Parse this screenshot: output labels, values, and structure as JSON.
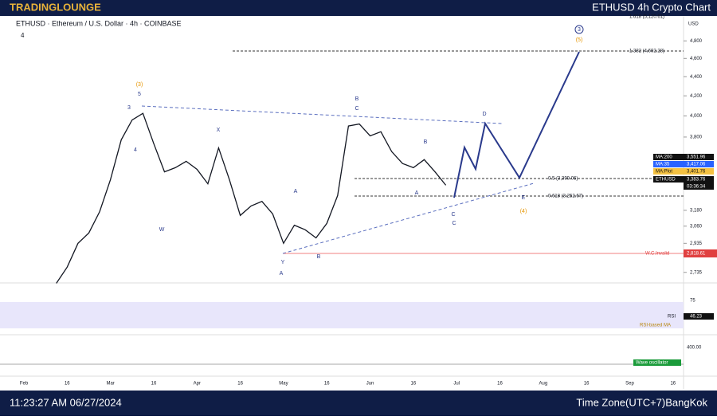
{
  "header": {
    "brand": "TRADINGLOUNGE",
    "title": "ETHUSD 4h Crypto Chart"
  },
  "symbol_info": "ETHUSD · Ethereum / U.S. Dollar · 4h · COINBASE",
  "indicator_count": "4",
  "currency": "USD",
  "chart_data": {
    "type": "line",
    "color": "#131722",
    "log": true,
    "ylim": [
      2640,
      5120
    ],
    "yticks": [
      {
        "value": 4800,
        "label": "4,800"
      },
      {
        "value": 4600,
        "label": "4,600"
      },
      {
        "value": 4400,
        "label": "4,400"
      },
      {
        "value": 4200,
        "label": "4,200"
      },
      {
        "value": 4000,
        "label": "4,000"
      },
      {
        "value": 3800,
        "label": "3,800"
      },
      {
        "value": 3180,
        "label": "3,180"
      },
      {
        "value": 3060,
        "label": "3,060"
      },
      {
        "value": 2935,
        "label": "2,935"
      },
      {
        "value": 2735,
        "label": "2,735"
      }
    ],
    "categories": [
      "Feb",
      null,
      null,
      null,
      "16",
      null,
      null,
      null,
      "Mar",
      null,
      null,
      null,
      "16",
      null,
      null,
      null,
      "Apr",
      null,
      null,
      null,
      "16",
      null,
      null,
      null,
      "May",
      null,
      null,
      null,
      "16",
      null,
      null,
      null,
      "Jun",
      null,
      null,
      null,
      "16",
      null,
      null,
      null,
      "Jul",
      null,
      null,
      null,
      "16",
      null,
      null,
      null,
      "Aug",
      null,
      null,
      null,
      "16",
      null,
      null,
      null,
      "Sep",
      null,
      null,
      null,
      "16"
    ],
    "values": [
      null,
      null,
      null,
      2663,
      2770,
      2935,
      3010,
      3170,
      3425,
      3775,
      3960,
      4025,
      3740,
      3492,
      3527,
      3582,
      3513,
      3392,
      3701,
      3425,
      3141,
      3214,
      3250,
      3152,
      2935,
      3067,
      3033,
      2974,
      3080,
      3296,
      3903,
      3922,
      3811,
      3849,
      3667,
      3563,
      3527,
      3597,
      3492,
      3380,
      null,
      null,
      null,
      null,
      null,
      null,
      null,
      null,
      null,
      null,
      null,
      null,
      null,
      null,
      null,
      null,
      null,
      null,
      null,
      null,
      null
    ]
  },
  "tags": {
    "ma200": {
      "name": "MA:200",
      "value": "3,551.96"
    },
    "ma35": {
      "name": "MA:35",
      "value": "3,417.06"
    },
    "maplot": {
      "name": "MA:Plot",
      "value": "3,401.76"
    },
    "price": {
      "name": "ETHUSD",
      "value": "3,383.76",
      "countdown": "03:36:34"
    },
    "invalid": {
      "name": "W.C.Invalid",
      "value": "2,818.61"
    }
  },
  "fib": {
    "top": "1.618 (5,120.61)",
    "f1382": "1.382 (4,692.28)",
    "f05": "0.5 (3,399.06)",
    "f0618": "0.618 (3,252.67)"
  },
  "waves": {
    "w3p": "(3)",
    "w5": "5",
    "w3": "3",
    "w4": "4",
    "W": "W",
    "X": "X",
    "Y": "Y",
    "A": "A",
    "B": "B",
    "C": "C",
    "A2": "A",
    "B2": "B",
    "C2": "C",
    "D": "D",
    "E": "E",
    "w4p": "(4)",
    "w5p": "(5)",
    "w3c": "3",
    "Atxt": "A",
    "Btxt": "B",
    "Ctxt": "C"
  },
  "rsi": {
    "tick": "75",
    "name": "RSI",
    "value": "46.23",
    "ma": "RSI-based MA"
  },
  "osc": {
    "tick": "400.00",
    "name": "Wave oscillator"
  },
  "footer": {
    "time": "11:23:27 AM 06/27/2024",
    "zone": "Time Zone(UTC+7)BangKok"
  }
}
